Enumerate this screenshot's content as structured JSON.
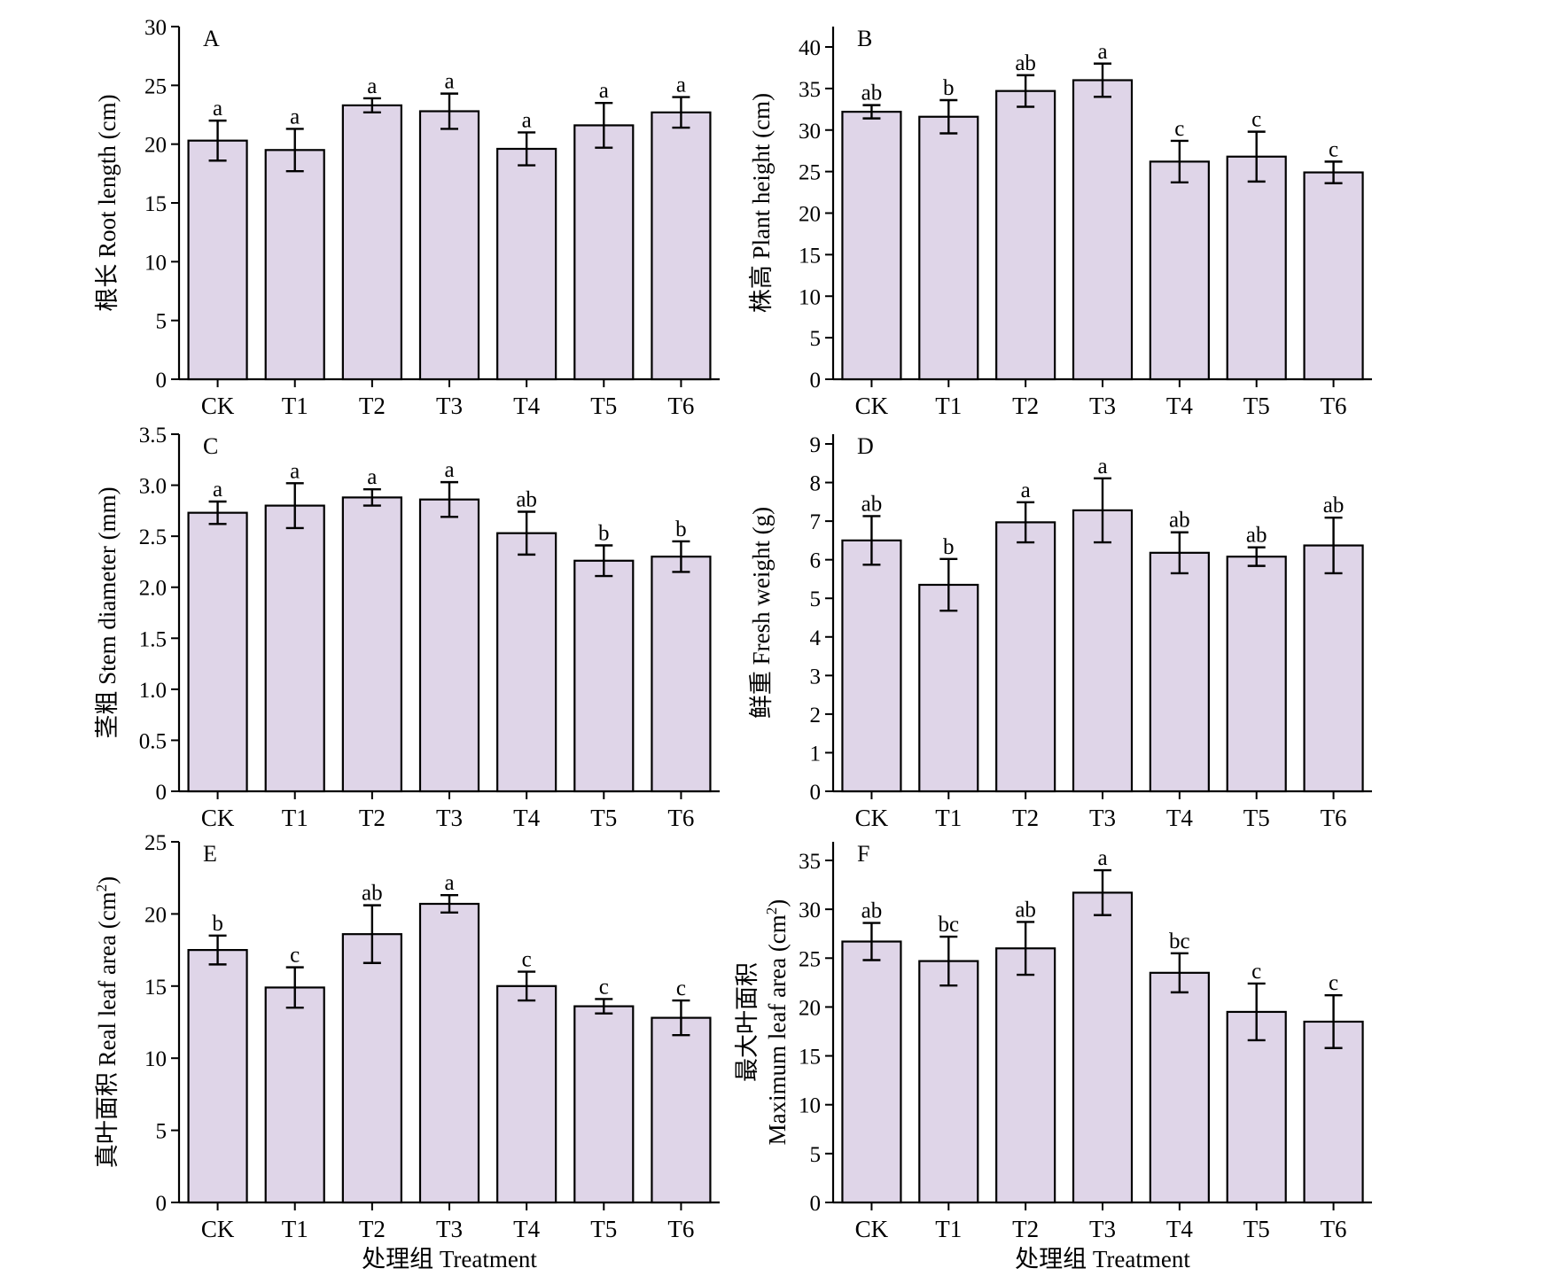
{
  "chart_data": [
    {
      "type": "bar",
      "panel": "A",
      "categories": [
        "CK",
        "T1",
        "T2",
        "T3",
        "T4",
        "T5",
        "T6"
      ],
      "values": [
        20.3,
        19.5,
        23.3,
        22.8,
        19.6,
        21.6,
        22.7
      ],
      "errors": [
        1.7,
        1.8,
        0.6,
        1.5,
        1.4,
        1.9,
        1.3
      ],
      "significance": [
        "a",
        "a",
        "a",
        "a",
        "a",
        "a",
        "a"
      ],
      "ylabel": "根长 Root length (cm)",
      "xlabel": "",
      "ylim": [
        0,
        30
      ],
      "yticks": [
        0,
        5,
        10,
        15,
        20,
        25,
        30
      ],
      "grid": false
    },
    {
      "type": "bar",
      "panel": "B",
      "categories": [
        "CK",
        "T1",
        "T2",
        "T3",
        "T4",
        "T5",
        "T6"
      ],
      "values": [
        32.2,
        31.6,
        34.7,
        36.0,
        26.2,
        26.8,
        24.9
      ],
      "errors": [
        0.8,
        2.0,
        1.9,
        2.0,
        2.5,
        3.0,
        1.3
      ],
      "significance": [
        "ab",
        "b",
        "ab",
        "a",
        "c",
        "c",
        "c"
      ],
      "ylabel": "株高 Plant height (cm)",
      "xlabel": "",
      "ylim": [
        0,
        42
      ],
      "yticks": [
        0,
        5,
        10,
        15,
        20,
        25,
        30,
        35,
        40
      ],
      "grid": false
    },
    {
      "type": "bar",
      "panel": "C",
      "categories": [
        "CK",
        "T1",
        "T2",
        "T3",
        "T4",
        "T5",
        "T6"
      ],
      "values": [
        2.73,
        2.8,
        2.88,
        2.86,
        2.53,
        2.26,
        2.3
      ],
      "errors": [
        0.11,
        0.22,
        0.08,
        0.17,
        0.21,
        0.15,
        0.15
      ],
      "significance": [
        "a",
        "a",
        "a",
        "a",
        "ab",
        "b",
        "b"
      ],
      "ylabel": "茎粗 Stem diameter (mm)",
      "xlabel": "",
      "ylim": [
        0,
        3.5
      ],
      "yticks": [
        "0",
        "0.5",
        "1.0",
        "1.5",
        "2.0",
        "2.5",
        "3.0",
        "3.5"
      ],
      "grid": false
    },
    {
      "type": "bar",
      "panel": "D",
      "categories": [
        "CK",
        "T1",
        "T2",
        "T3",
        "T4",
        "T5",
        "T6"
      ],
      "values": [
        6.5,
        5.35,
        6.97,
        7.28,
        6.18,
        6.08,
        6.37
      ],
      "errors": [
        0.63,
        0.67,
        0.52,
        0.83,
        0.53,
        0.24,
        0.72
      ],
      "significance": [
        "ab",
        "b",
        "a",
        "a",
        "ab",
        "ab",
        "ab"
      ],
      "ylabel": "鲜重 Fresh weight (g)",
      "xlabel": "",
      "ylim": [
        0,
        9.4
      ],
      "yticks": [
        0,
        1,
        2,
        3,
        4,
        5,
        6,
        7,
        8,
        9
      ],
      "grid": false
    },
    {
      "type": "bar",
      "panel": "E",
      "categories": [
        "CK",
        "T1",
        "T2",
        "T3",
        "T4",
        "T5",
        "T6"
      ],
      "values": [
        17.5,
        14.9,
        18.6,
        20.7,
        15.0,
        13.6,
        12.8
      ],
      "errors": [
        1.0,
        1.4,
        2.0,
        0.6,
        1.0,
        0.5,
        1.2
      ],
      "significance": [
        "b",
        "c",
        "ab",
        "a",
        "c",
        "c",
        "c"
      ],
      "ylabel_main": "真叶面积 Real leaf area (cm",
      "ylabel_sup": "2",
      "ylabel_end": ")",
      "xlabel": "处理组 Treatment",
      "ylim": [
        0,
        25
      ],
      "yticks": [
        0,
        5,
        10,
        15,
        20,
        25
      ],
      "grid": false
    },
    {
      "type": "bar",
      "panel": "F",
      "categories": [
        "CK",
        "T1",
        "T2",
        "T3",
        "T4",
        "T5",
        "T6"
      ],
      "values": [
        26.7,
        24.7,
        26.0,
        31.7,
        23.5,
        19.5,
        18.5
      ],
      "errors": [
        1.9,
        2.5,
        2.7,
        2.3,
        2.0,
        2.9,
        2.7
      ],
      "significance": [
        "ab",
        "bc",
        "ab",
        "a",
        "bc",
        "c",
        "c"
      ],
      "ylabel_line1": "最大叶面积",
      "ylabel_main": "Maximum leaf area (cm",
      "ylabel_sup": "2",
      "ylabel_end": ")",
      "xlabel": "处理组 Treatment",
      "ylim": [
        0,
        38
      ],
      "yticks": [
        0,
        5,
        10,
        15,
        20,
        25,
        30,
        35
      ],
      "grid": false
    }
  ]
}
